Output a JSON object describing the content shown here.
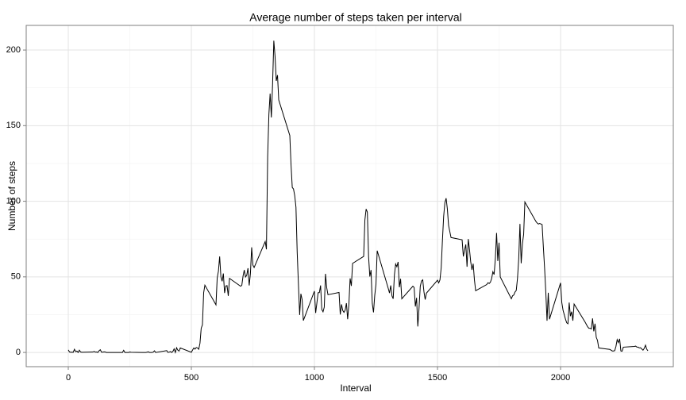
{
  "chart_data": {
    "type": "line",
    "title": "Average number of steps taken per interval",
    "xlabel": "Interval",
    "ylabel": "Number of steps",
    "x": [
      0,
      5,
      10,
      15,
      20,
      25,
      30,
      35,
      40,
      45,
      50,
      55,
      100,
      105,
      110,
      115,
      120,
      125,
      130,
      135,
      140,
      145,
      150,
      155,
      200,
      205,
      210,
      215,
      220,
      225,
      230,
      235,
      240,
      245,
      250,
      255,
      300,
      305,
      310,
      315,
      320,
      325,
      330,
      335,
      340,
      345,
      350,
      355,
      400,
      405,
      410,
      415,
      420,
      425,
      430,
      435,
      440,
      445,
      450,
      455,
      500,
      505,
      510,
      515,
      520,
      525,
      530,
      535,
      540,
      545,
      550,
      555,
      600,
      605,
      610,
      615,
      620,
      625,
      630,
      635,
      640,
      645,
      650,
      655,
      700,
      705,
      710,
      715,
      720,
      725,
      730,
      735,
      740,
      745,
      750,
      755,
      800,
      805,
      810,
      815,
      820,
      825,
      830,
      835,
      840,
      845,
      850,
      855,
      900,
      905,
      910,
      915,
      920,
      925,
      930,
      935,
      940,
      945,
      950,
      955,
      1000,
      1005,
      1010,
      1015,
      1020,
      1025,
      1030,
      1035,
      1040,
      1045,
      1050,
      1055,
      1100,
      1105,
      1110,
      1115,
      1120,
      1125,
      1130,
      1135,
      1140,
      1145,
      1150,
      1155,
      1200,
      1205,
      1210,
      1215,
      1220,
      1225,
      1230,
      1235,
      1240,
      1245,
      1250,
      1255,
      1300,
      1305,
      1310,
      1315,
      1320,
      1325,
      1330,
      1335,
      1340,
      1345,
      1350,
      1355,
      1400,
      1405,
      1410,
      1415,
      1420,
      1425,
      1430,
      1435,
      1440,
      1445,
      1450,
      1455,
      1500,
      1505,
      1510,
      1515,
      1520,
      1525,
      1530,
      1535,
      1540,
      1545,
      1550,
      1555,
      1600,
      1605,
      1610,
      1615,
      1620,
      1625,
      1630,
      1635,
      1640,
      1645,
      1650,
      1655,
      1700,
      1705,
      1710,
      1715,
      1720,
      1725,
      1730,
      1735,
      1740,
      1745,
      1750,
      1755,
      1800,
      1805,
      1810,
      1815,
      1820,
      1825,
      1830,
      1835,
      1840,
      1845,
      1850,
      1855,
      1900,
      1905,
      1910,
      1915,
      1920,
      1925,
      1930,
      1935,
      1940,
      1945,
      1950,
      1955,
      2000,
      2005,
      2010,
      2015,
      2020,
      2025,
      2030,
      2035,
      2040,
      2045,
      2050,
      2055,
      2100,
      2105,
      2110,
      2115,
      2120,
      2125,
      2130,
      2135,
      2140,
      2145,
      2150,
      2155,
      2200,
      2205,
      2210,
      2215,
      2220,
      2225,
      2230,
      2235,
      2240,
      2245,
      2250,
      2255,
      2300,
      2305,
      2310,
      2315,
      2320,
      2325,
      2330,
      2335,
      2340,
      2345,
      2350,
      2355
    ],
    "series": [
      {
        "name": "Number of steps",
        "color": "#000000",
        "values": [
          1.7,
          0.3,
          0.1,
          0.2,
          0.1,
          2.1,
          0.5,
          0.9,
          0,
          1.5,
          0.3,
          0.1,
          0.3,
          0.7,
          0.2,
          0.3,
          0,
          1.1,
          1.8,
          0.2,
          0.2,
          0.4,
          0.3,
          0,
          0,
          0,
          0,
          0,
          0,
          1.4,
          0,
          0,
          0,
          0,
          0.3,
          0.1,
          0,
          0,
          0,
          0,
          0.2,
          0.4,
          0,
          0,
          0,
          0.2,
          1.1,
          0,
          1.2,
          0,
          0.2,
          0.6,
          0,
          0.7,
          2.4,
          0,
          3.1,
          1.5,
          0.9,
          3.0,
          0.1,
          1.6,
          3.0,
          2.2,
          3.3,
          3.0,
          2.1,
          6.1,
          16.0,
          18.3,
          39.5,
          44.5,
          31.5,
          49.3,
          53.8,
          63.5,
          50.0,
          47.1,
          52.2,
          39.3,
          44.0,
          44.2,
          37.4,
          49.0,
          43.8,
          44.4,
          50.5,
          54.5,
          49.9,
          51.0,
          55.7,
          44.3,
          52.3,
          69.5,
          57.8,
          56.2,
          73.4,
          68.2,
          129.4,
          157.5,
          171.2,
          155.4,
          177.3,
          206.2,
          195.9,
          179.6,
          183.4,
          167.0,
          143.5,
          124.0,
          109.1,
          108.1,
          103.7,
          96.0,
          66.2,
          45.2,
          24.8,
          38.8,
          35.0,
          21.1,
          40.6,
          26.1,
          32.7,
          39.5,
          39.6,
          44.3,
          28.4,
          26.9,
          30.0,
          52.0,
          42.8,
          38.2,
          39.7,
          25.1,
          31.8,
          27.8,
          26.5,
          28.0,
          32.6,
          22.0,
          31.9,
          49.0,
          44.0,
          58.9,
          63.5,
          87.6,
          94.8,
          92.8,
          63.4,
          50.2,
          54.5,
          32.4,
          26.5,
          37.7,
          45.1,
          67.3,
          42.3,
          39.3,
          44.3,
          37.4,
          35.5,
          51.4,
          58.5,
          56.7,
          59.9,
          43.1,
          48.7,
          35.5,
          43.8,
          43.0,
          30.4,
          36.1,
          17.2,
          29.4,
          43.7,
          47.2,
          48.0,
          40.1,
          35.0,
          39.2,
          47.8,
          46.0,
          48.0,
          56.0,
          74.0,
          90.0,
          99.0,
          102.0,
          95.0,
          84.0,
          80.0,
          76.0,
          74.5,
          63.5,
          67.8,
          71.4,
          56.7,
          75.0,
          68.0,
          59.9,
          54.6,
          58.7,
          48.1,
          40.8,
          44.9,
          46.1,
          45.6,
          46.5,
          48.9,
          53.4,
          51.5,
          62.0,
          79.0,
          60.5,
          72.6,
          49.9,
          35.5,
          37.5,
          38.0,
          40.0,
          41.0,
          49.0,
          62.0,
          85.0,
          59.0,
          72.0,
          78.0,
          99.5,
          86.6,
          85.6,
          84.9,
          85.3,
          85.0,
          84.6,
          70.0,
          56.0,
          40.0,
          21.0,
          39.5,
          22.0,
          46.0,
          33.0,
          28.0,
          25.0,
          22.0,
          19.6,
          19.0,
          33.0,
          24.0,
          27.0,
          21.0,
          32.0,
          20.0,
          18.5,
          17.0,
          16.0,
          16.0,
          15.5,
          22.5,
          14.0,
          19.0,
          10.0,
          8.0,
          3.0,
          2.0,
          1.5,
          1.0,
          1.0,
          1.2,
          4.0,
          8.5,
          6.5,
          9.0,
          1.0,
          0.8,
          3.5,
          4.0,
          4.2,
          3.6,
          3.5,
          3.0,
          3.1,
          2.3,
          1.5,
          2.7,
          4.8,
          2.2,
          1.1
        ]
      }
    ],
    "xlim": [
      -171,
      2458
    ],
    "ylim": [
      -9.4,
      216.3
    ],
    "xticks": [
      0,
      500,
      1000,
      1500,
      2000
    ],
    "yticks": [
      0,
      50,
      100,
      150,
      200
    ],
    "grid": true
  }
}
